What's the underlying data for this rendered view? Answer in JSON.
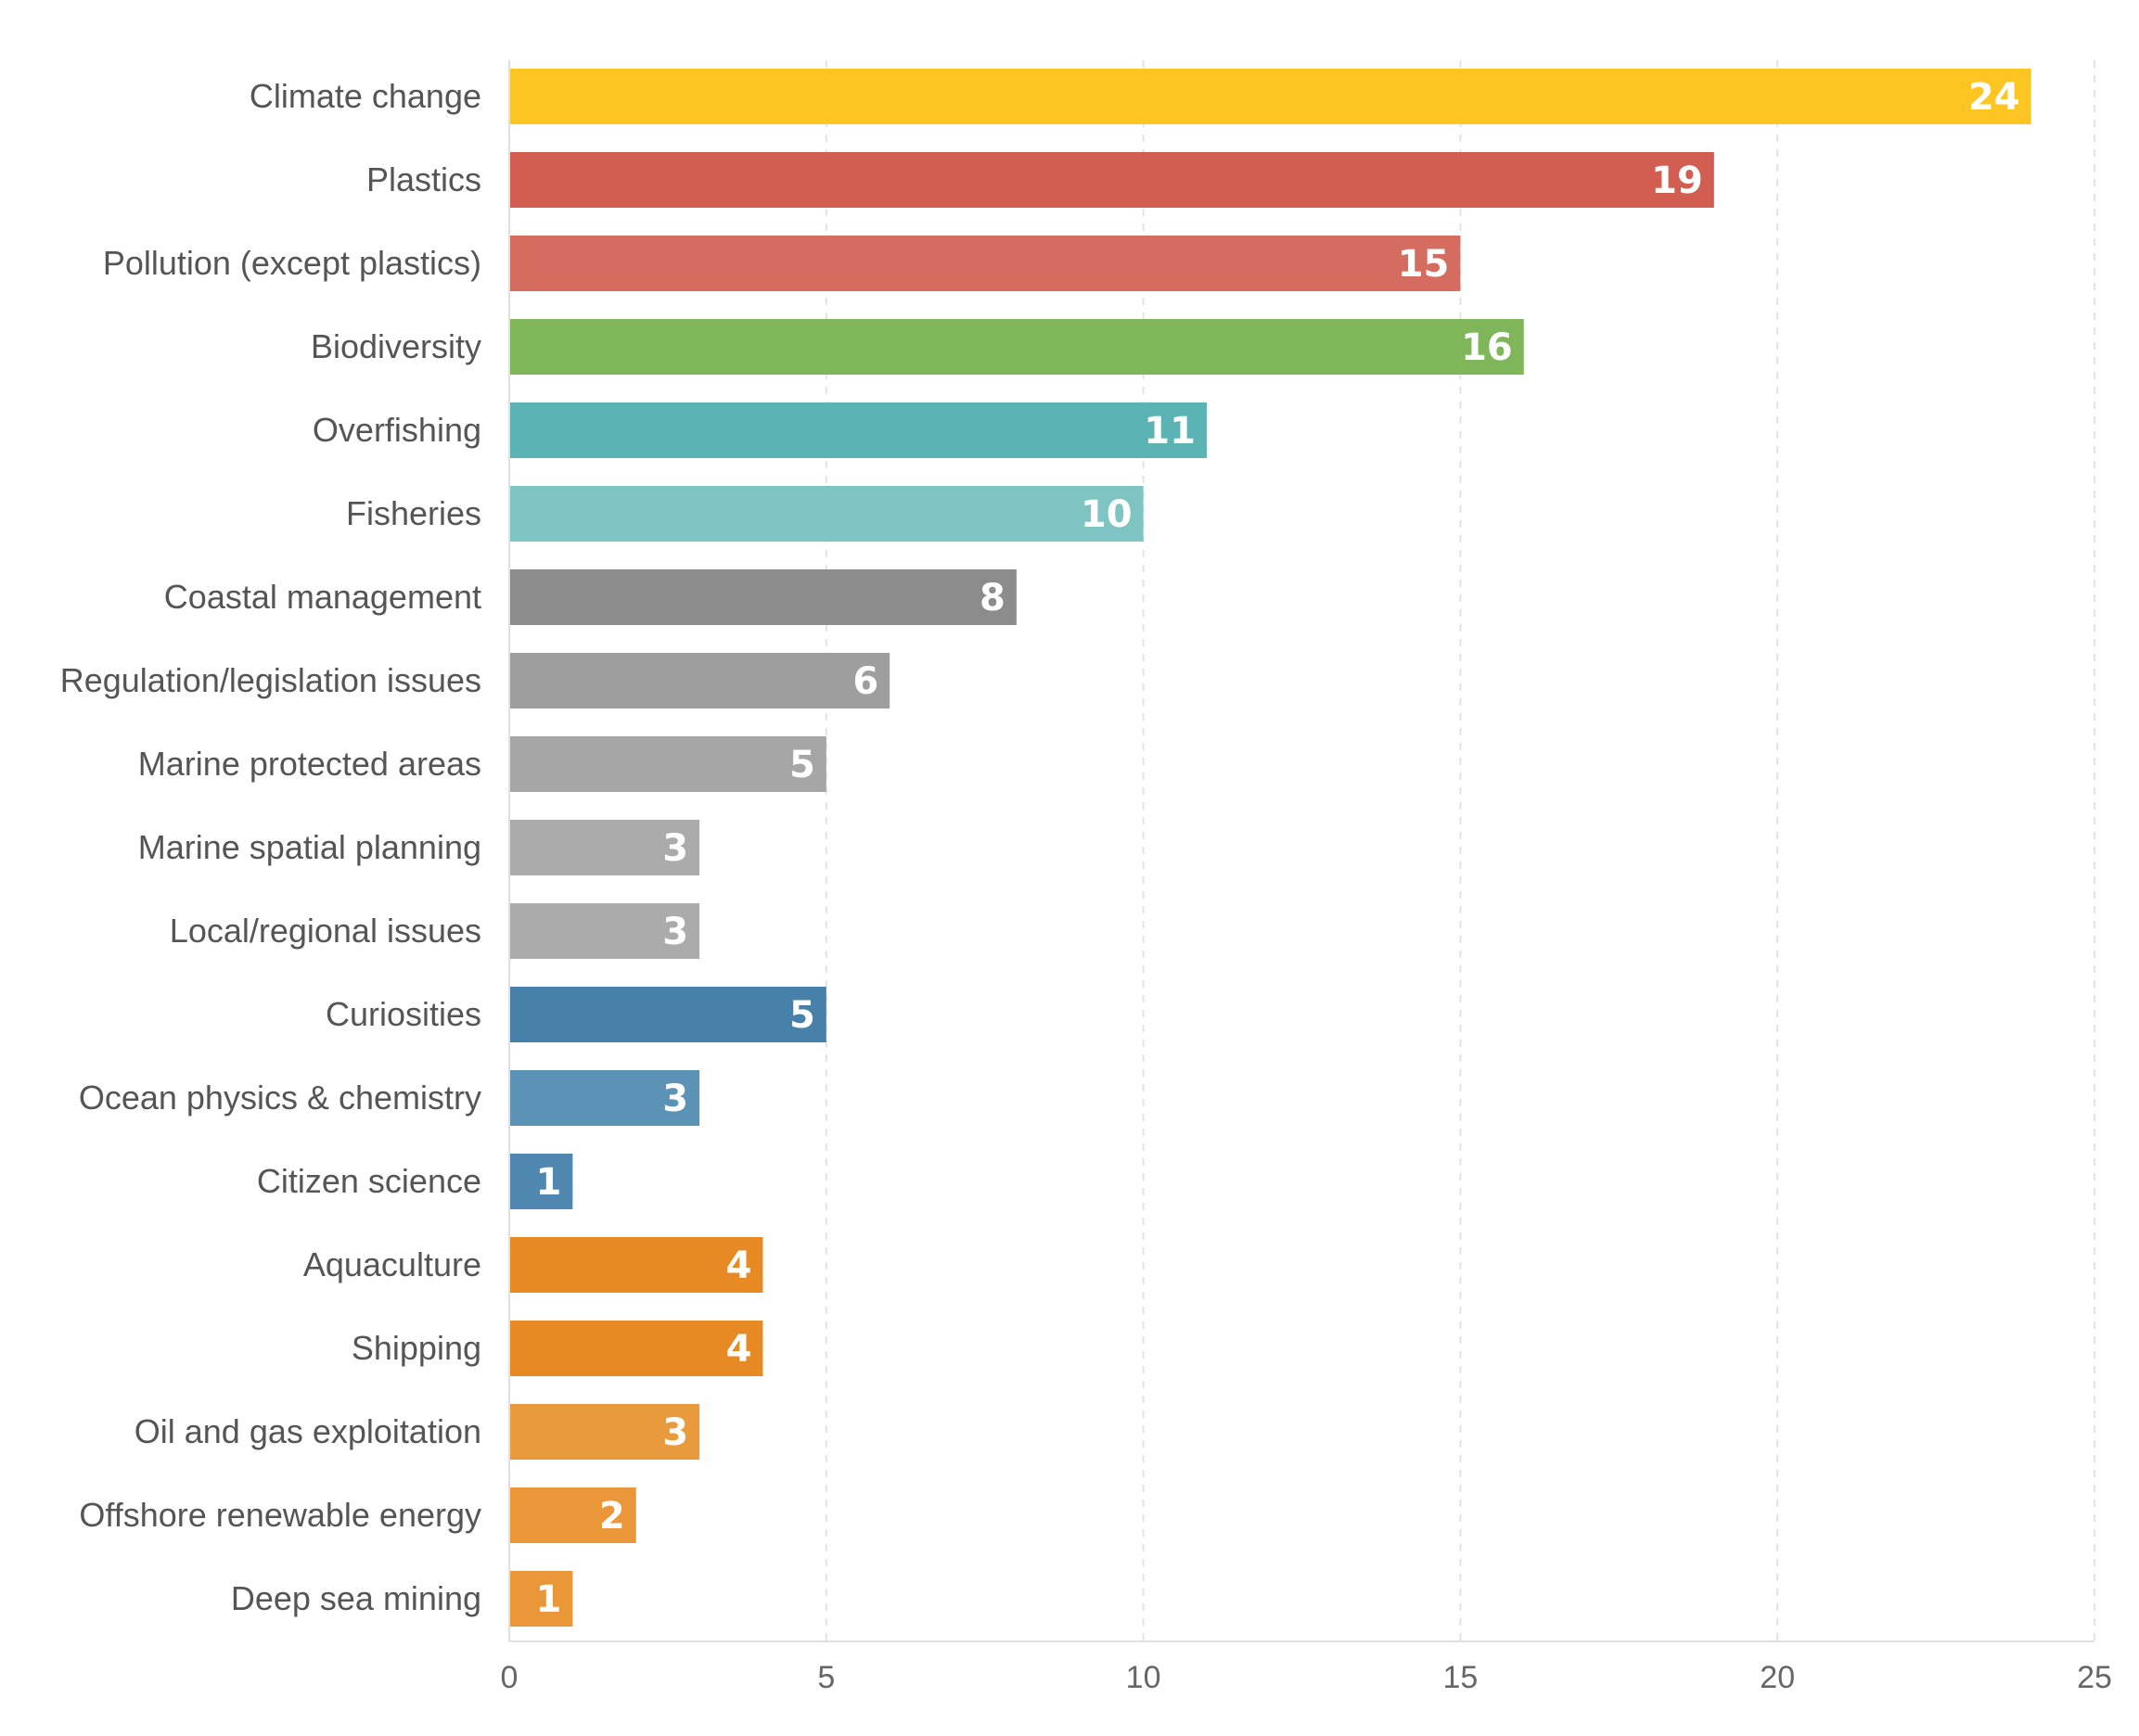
{
  "chart_data": {
    "type": "bar",
    "orientation": "horizontal",
    "title": "",
    "xlabel": "",
    "ylabel": "",
    "xlim": [
      0,
      25
    ],
    "x_ticks": [
      0,
      5,
      10,
      15,
      20,
      25
    ],
    "grid": true,
    "data_labels": true,
    "bars": [
      {
        "category": "Climate change",
        "value": 24,
        "color": "#FDC521"
      },
      {
        "category": "Plastics",
        "value": 19,
        "color": "#D15E50"
      },
      {
        "category": "Pollution (except plastics)",
        "value": 15,
        "color": "#D46D60"
      },
      {
        "category": "Biodiversity",
        "value": 16,
        "color": "#80B65A"
      },
      {
        "category": "Overfishing",
        "value": 11,
        "color": "#5BB3B3"
      },
      {
        "category": "Fisheries",
        "value": 10,
        "color": "#7DC4C3"
      },
      {
        "category": "Coastal management",
        "value": 8,
        "color": "#8C8C8C"
      },
      {
        "category": "Regulation/legislation issues",
        "value": 6,
        "color": "#9E9E9E"
      },
      {
        "category": "Marine protected areas",
        "value": 5,
        "color": "#A6A6A6"
      },
      {
        "category": "Marine spatial planning",
        "value": 3,
        "color": "#ABABAB"
      },
      {
        "category": "Local/regional issues",
        "value": 3,
        "color": "#ABABAB"
      },
      {
        "category": "Curiosities",
        "value": 5,
        "color": "#4781AA"
      },
      {
        "category": "Ocean physics & chemistry",
        "value": 3,
        "color": "#5D92B7"
      },
      {
        "category": "Citizen science",
        "value": 1,
        "color": "#4F87B0"
      },
      {
        "category": "Aquaculture",
        "value": 4,
        "color": "#E88A24"
      },
      {
        "category": "Shipping",
        "value": 4,
        "color": "#E88A24"
      },
      {
        "category": "Oil and gas exploitation",
        "value": 3,
        "color": "#E99A3C"
      },
      {
        "category": "Offshore renewable energy",
        "value": 2,
        "color": "#EA973A"
      },
      {
        "category": "Deep sea mining",
        "value": 1,
        "color": "#EA973A"
      }
    ]
  }
}
